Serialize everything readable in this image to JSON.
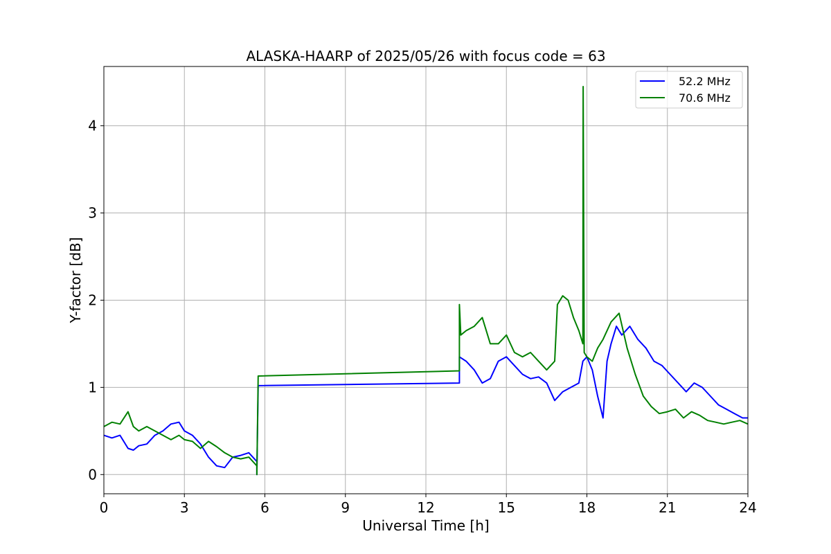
{
  "chart_data": {
    "type": "line",
    "title": "ALASKA-HAARP of 2025/05/26 with focus code = 63",
    "xlabel": "Universal Time [h]",
    "ylabel": "Y-factor [dB]",
    "xlim": [
      0,
      24
    ],
    "ylim": [
      -0.22,
      4.68
    ],
    "xticks": [
      0,
      3,
      6,
      9,
      12,
      15,
      18,
      21,
      24
    ],
    "yticks": [
      0,
      1,
      2,
      3,
      4
    ],
    "grid": true,
    "legend_position": "top-right",
    "series": [
      {
        "name": "52.2 MHz",
        "color": "#0000ff",
        "x": [
          0,
          0.3,
          0.6,
          0.9,
          1.1,
          1.3,
          1.6,
          1.9,
          2.2,
          2.5,
          2.8,
          3.0,
          3.3,
          3.6,
          3.9,
          4.2,
          4.5,
          4.8,
          5.1,
          5.4,
          5.7,
          5.7,
          5.75,
          13.25,
          13.25,
          13.5,
          13.8,
          14.1,
          14.4,
          14.7,
          15.0,
          15.3,
          15.6,
          15.9,
          16.2,
          16.5,
          16.8,
          17.1,
          17.4,
          17.7,
          17.85,
          18.0,
          18.2,
          18.4,
          18.6,
          18.75,
          18.9,
          19.1,
          19.3,
          19.6,
          19.9,
          20.2,
          20.5,
          20.8,
          21.1,
          21.4,
          21.7,
          22.0,
          22.3,
          22.6,
          22.9,
          23.2,
          23.5,
          23.8,
          24.0
        ],
        "y": [
          0.45,
          0.42,
          0.45,
          0.3,
          0.28,
          0.33,
          0.35,
          0.45,
          0.5,
          0.58,
          0.6,
          0.5,
          0.45,
          0.35,
          0.2,
          0.1,
          0.08,
          0.2,
          0.22,
          0.25,
          0.15,
          0.0,
          1.02,
          1.05,
          1.35,
          1.3,
          1.2,
          1.05,
          1.1,
          1.3,
          1.35,
          1.25,
          1.15,
          1.1,
          1.12,
          1.05,
          0.85,
          0.95,
          1.0,
          1.05,
          1.3,
          1.35,
          1.2,
          0.9,
          0.65,
          1.3,
          1.5,
          1.7,
          1.6,
          1.7,
          1.55,
          1.45,
          1.3,
          1.25,
          1.15,
          1.05,
          0.95,
          1.05,
          1.0,
          0.9,
          0.8,
          0.75,
          0.7,
          0.65,
          0.65
        ]
      },
      {
        "name": "70.6 MHz",
        "color": "#008000",
        "x": [
          0,
          0.3,
          0.6,
          0.9,
          1.1,
          1.3,
          1.6,
          1.9,
          2.2,
          2.5,
          2.8,
          3.0,
          3.3,
          3.6,
          3.9,
          4.2,
          4.5,
          4.8,
          5.1,
          5.4,
          5.7,
          5.7,
          5.75,
          13.25,
          13.25,
          13.3,
          13.5,
          13.8,
          14.1,
          14.4,
          14.7,
          15.0,
          15.3,
          15.6,
          15.9,
          16.2,
          16.5,
          16.8,
          16.9,
          17.1,
          17.3,
          17.5,
          17.7,
          17.85,
          17.86,
          17.9,
          18.0,
          18.2,
          18.4,
          18.6,
          18.9,
          19.2,
          19.5,
          19.8,
          20.1,
          20.4,
          20.7,
          21.0,
          21.3,
          21.6,
          21.9,
          22.2,
          22.5,
          22.8,
          23.1,
          23.4,
          23.7,
          24.0
        ],
        "y": [
          0.55,
          0.6,
          0.58,
          0.72,
          0.55,
          0.5,
          0.55,
          0.5,
          0.45,
          0.4,
          0.45,
          0.4,
          0.38,
          0.3,
          0.38,
          0.32,
          0.25,
          0.2,
          0.18,
          0.2,
          0.1,
          0.0,
          1.13,
          1.19,
          1.95,
          1.6,
          1.65,
          1.7,
          1.8,
          1.5,
          1.5,
          1.6,
          1.4,
          1.35,
          1.4,
          1.3,
          1.2,
          1.3,
          1.95,
          2.05,
          2.0,
          1.8,
          1.65,
          1.5,
          4.45,
          1.4,
          1.35,
          1.3,
          1.45,
          1.55,
          1.75,
          1.85,
          1.45,
          1.15,
          0.9,
          0.78,
          0.7,
          0.72,
          0.75,
          0.65,
          0.72,
          0.68,
          0.62,
          0.6,
          0.58,
          0.6,
          0.62,
          0.58
        ]
      }
    ]
  }
}
